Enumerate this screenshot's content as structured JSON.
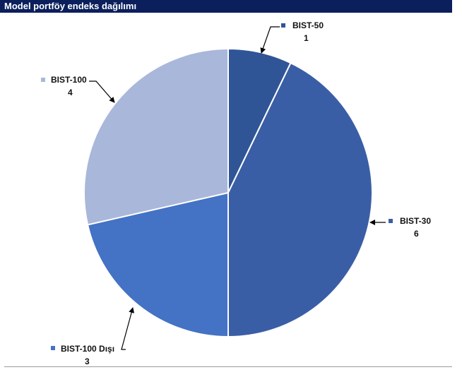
{
  "header": {
    "title": "Model portföy endeks dağılımı"
  },
  "chart_data": {
    "type": "pie",
    "title": "Model portföy endeks dağılımı",
    "categories": [
      "BIST-50",
      "BIST-30",
      "BIST-100 Dışı",
      "BIST-100"
    ],
    "values": [
      1,
      6,
      3,
      4
    ],
    "colors": [
      "#2f5597",
      "#3a5ea6",
      "#4472c4",
      "#a9b7da"
    ],
    "start_angle_deg": 0,
    "direction": "clockwise",
    "legend": "none",
    "data_labels": [
      "1",
      "6",
      "3",
      "4"
    ]
  }
}
